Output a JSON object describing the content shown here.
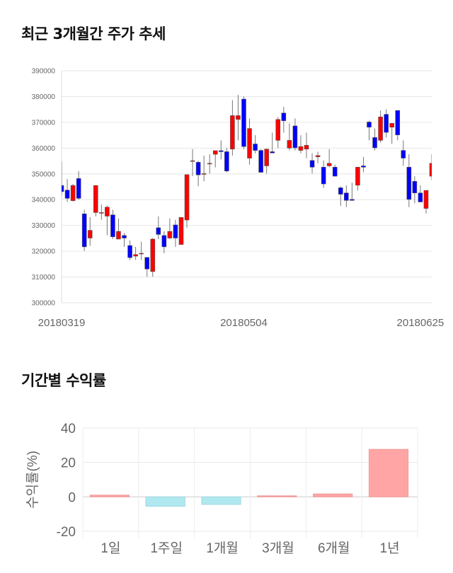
{
  "section1": {
    "title": "최근 3개월간 주가 추세"
  },
  "section2": {
    "title": "기간별 수익률"
  },
  "chart_data": [
    {
      "type": "candlestick",
      "title": "",
      "ylim": [
        300000,
        390000
      ],
      "yticks": [
        "300000",
        "310000",
        "320000",
        "330000",
        "340000",
        "350000",
        "360000",
        "370000",
        "380000",
        "390000"
      ],
      "xtick_labels": [
        {
          "index": 0,
          "label": "20180319"
        },
        {
          "index": 32,
          "label": "20180504"
        },
        {
          "index": 63,
          "label": "20180625"
        }
      ],
      "grid": true,
      "colors": {
        "up": "#ff0000",
        "down": "#0000ff"
      },
      "ohlc_thousands": [
        [
          345.5,
          354.8,
          341.6,
          343.1
        ],
        [
          343.7,
          348,
          339.1,
          340.5
        ],
        [
          339.6,
          346.1,
          339.3,
          345.5
        ],
        [
          348.2,
          351.1,
          339.9,
          340.5
        ],
        [
          334.5,
          336.1,
          320.1,
          321.7
        ],
        [
          325.1,
          333.2,
          322.1,
          328.1
        ],
        [
          335.0,
          345.5,
          333.5,
          345.5
        ],
        [
          335,
          338.1,
          332.2,
          335
        ],
        [
          333.6,
          337.6,
          326.2,
          337.1
        ],
        [
          334.1,
          336.1,
          324.7,
          325.6
        ],
        [
          324.7,
          332.7,
          324.7,
          327.7
        ],
        [
          326.1,
          327.1,
          321.7,
          325.1
        ],
        [
          322.2,
          324.2,
          316.6,
          317.5
        ],
        [
          318.1,
          321.7,
          316.6,
          318.7
        ],
        [
          319.2,
          323.7,
          316.6,
          319.2
        ],
        [
          317.6,
          317.6,
          310.1,
          313.1
        ],
        [
          312.1,
          325.1,
          310.1,
          324.7
        ],
        [
          329.1,
          333.5,
          324.7,
          326.5
        ],
        [
          326.1,
          327.7,
          319.2,
          321.7
        ],
        [
          325.1,
          332.7,
          324.7,
          327.7
        ],
        [
          330.2,
          332.2,
          321.7,
          325.1
        ],
        [
          322.6,
          333.1,
          322.6,
          333.1
        ],
        [
          332.1,
          349.7,
          329.1,
          349.7
        ],
        [
          355.1,
          359.6,
          349.1,
          355.1
        ],
        [
          354.5,
          355.1,
          345.2,
          349.6
        ],
        [
          350.1,
          357.1,
          347.1,
          350.1
        ],
        [
          354.1,
          357.6,
          350.1,
          354.1
        ],
        [
          357.6,
          359.0,
          352.5,
          359.0
        ],
        [
          359.0,
          363.0,
          355.6,
          358.6
        ],
        [
          358.6,
          360.0,
          350.6,
          351.1
        ],
        [
          359.6,
          378.6,
          357.1,
          372.6
        ],
        [
          371.1,
          380.6,
          363.0,
          372.6
        ],
        [
          379.0,
          380.0,
          359.6,
          360.6
        ],
        [
          356.1,
          371.5,
          353.6,
          367.6
        ],
        [
          361.6,
          365.0,
          358.0,
          359.1
        ],
        [
          359.1,
          359.6,
          350.6,
          350.6
        ],
        [
          353.1,
          359.8,
          350.1,
          359.6
        ],
        [
          358.6,
          366.0,
          358.0,
          358.1
        ],
        [
          363.0,
          372.1,
          360.0,
          371.1
        ],
        [
          373.6,
          376.0,
          366.0,
          370.6
        ],
        [
          360.0,
          369.6,
          359.1,
          363.0
        ],
        [
          368.6,
          371.5,
          359.1,
          360.1
        ],
        [
          359.1,
          365.0,
          358.0,
          360.6
        ],
        [
          359.6,
          366.0,
          356.1,
          361.1
        ],
        [
          355.2,
          358.0,
          350.1,
          352.6
        ],
        [
          356.6,
          358.6,
          354.1,
          357.1
        ],
        [
          352.6,
          355.2,
          344.6,
          346.1
        ],
        [
          353.1,
          359.6,
          352.6,
          354.1
        ],
        [
          352.6,
          353.6,
          349.1,
          349.1
        ],
        [
          344.6,
          345.1,
          337.6,
          342.1
        ],
        [
          342.6,
          345.6,
          337.1,
          339.7
        ],
        [
          340.1,
          346.6,
          339.7,
          339.7
        ],
        [
          345.6,
          352.6,
          343.6,
          352.6
        ],
        [
          353.1,
          356.6,
          350.6,
          352.6
        ],
        [
          370.1,
          370.6,
          363.0,
          368.1
        ],
        [
          364.1,
          367.6,
          359.1,
          360.1
        ],
        [
          363.0,
          374.6,
          362.1,
          372.1
        ],
        [
          373.1,
          375.0,
          364.1,
          366.1
        ],
        [
          368.1,
          369.6,
          361.6,
          369.6
        ],
        [
          374.6,
          374.6,
          363.0,
          365.1
        ],
        [
          359.1,
          363.0,
          353.1,
          356.1
        ],
        [
          352.6,
          357.6,
          337.1,
          340.1
        ],
        [
          347.1,
          349.1,
          338.6,
          342.6
        ],
        [
          342.6,
          345.6,
          339.1,
          339.1
        ],
        [
          336.6,
          343.6,
          334.6,
          343.6
        ],
        [
          349.1,
          357.6,
          347.6,
          354.1
        ]
      ]
    },
    {
      "type": "bar",
      "title": "",
      "ylabel": "수익률(%)",
      "ylim": [
        -20,
        40
      ],
      "yticks": [
        "-20",
        "0",
        "20",
        "40"
      ],
      "categories": [
        "1일",
        "1주일",
        "1개월",
        "3개월",
        "6개월",
        "1년"
      ],
      "values": [
        1.0,
        -5.5,
        -4.4,
        0.6,
        1.7,
        27.6
      ],
      "grid": true,
      "colors": {
        "positive": "#ffa5a5",
        "negative": "#b0e8f0"
      }
    }
  ]
}
